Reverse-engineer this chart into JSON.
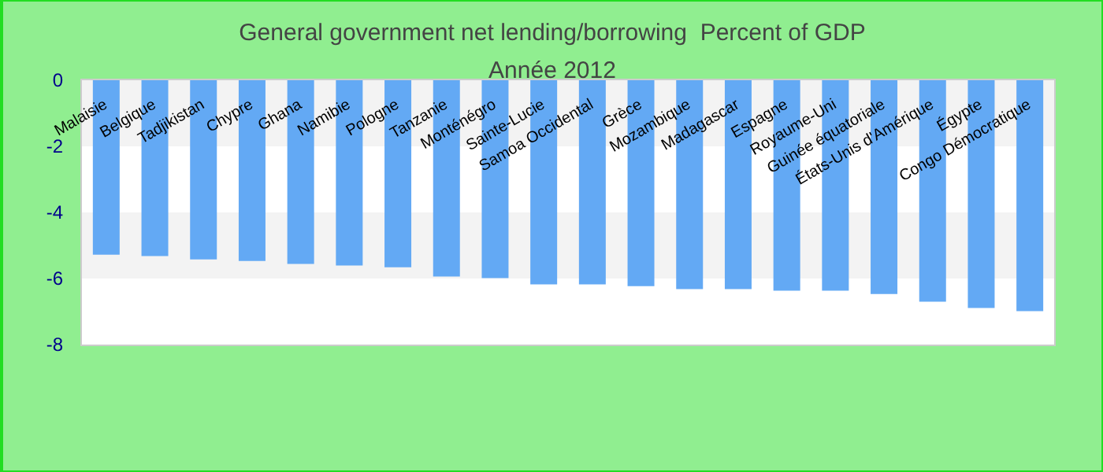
{
  "chart_data": {
    "type": "bar",
    "title": "General government net lending/borrowing  Percent of GDP",
    "subtitle": "Année 2012",
    "categories": [
      "Malaisie",
      "Belgique",
      "Tadjikistan",
      "Chypre",
      "Ghana",
      "Namibie",
      "Pologne",
      "Tanzanie",
      "Monténégro",
      "Sainte-Lucie",
      "Samoa Occidental",
      "Grèce",
      "Mozambique",
      "Madagascar",
      "Espagne",
      "Royaume-Uni",
      "Guinée équatoriale",
      "États-Unis d'Amérique",
      "Égypte",
      "Congo Démocratique"
    ],
    "values": [
      -5.28,
      -5.32,
      -5.42,
      -5.47,
      -5.56,
      -5.61,
      -5.66,
      -5.94,
      -5.99,
      -6.18,
      -6.18,
      -6.23,
      -6.32,
      -6.32,
      -6.37,
      -6.37,
      -6.47,
      -6.7,
      -6.89,
      -6.99
    ],
    "color": "#63a9f4",
    "ylim": [
      -8,
      0
    ],
    "yticks": [
      -8,
      -6,
      -4,
      -2,
      0
    ],
    "grid": false
  }
}
